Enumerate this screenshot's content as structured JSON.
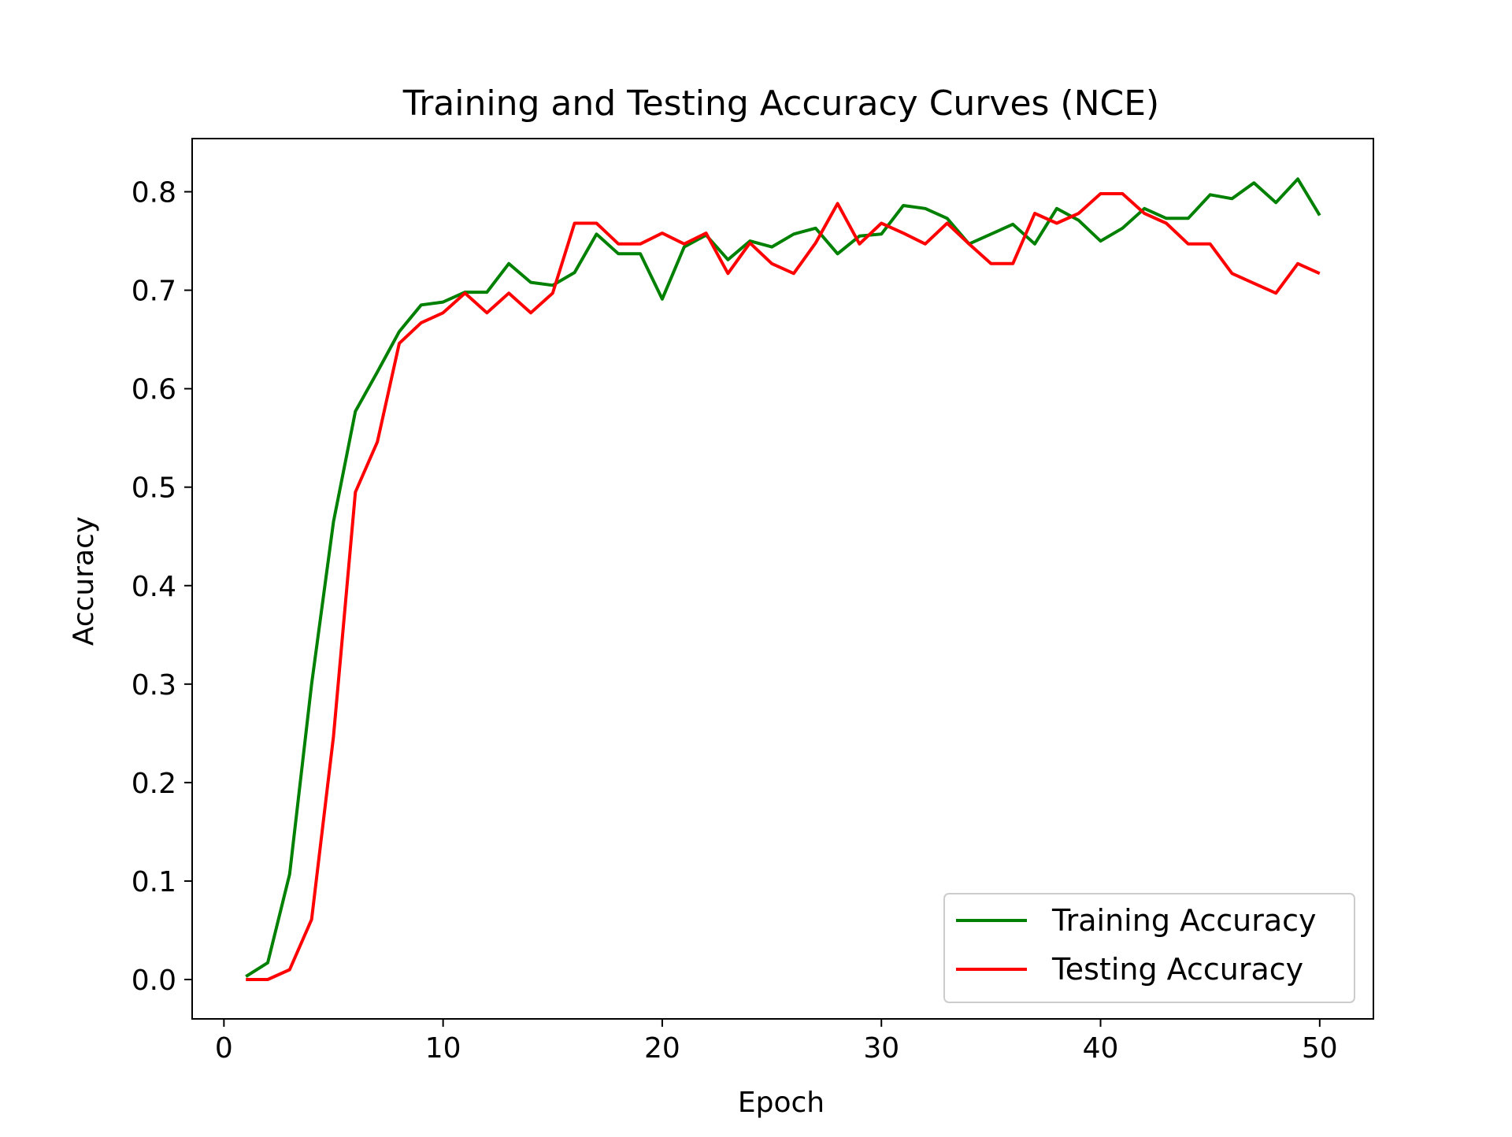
{
  "chart_data": {
    "type": "line",
    "title": "Training and Testing Accuracy Curves (NCE)",
    "xlabel": "Epoch",
    "ylabel": "Accuracy",
    "xlim": [
      -1.45,
      52.45
    ],
    "ylim": [
      -0.04,
      0.854
    ],
    "xticks": [
      0,
      10,
      20,
      30,
      40,
      50
    ],
    "yticks": [
      0.0,
      0.1,
      0.2,
      0.3,
      0.4,
      0.5,
      0.6,
      0.7,
      0.8
    ],
    "grid": false,
    "legend_position": "lower-right",
    "x": [
      1,
      2,
      3,
      4,
      5,
      6,
      7,
      8,
      9,
      10,
      11,
      12,
      13,
      14,
      15,
      16,
      17,
      18,
      19,
      20,
      21,
      22,
      23,
      24,
      25,
      26,
      27,
      28,
      29,
      30,
      31,
      32,
      33,
      34,
      35,
      36,
      37,
      38,
      39,
      40,
      41,
      42,
      43,
      44,
      45,
      46,
      47,
      48,
      49,
      50
    ],
    "series": [
      {
        "name": "Training Accuracy",
        "color": "#008000",
        "values": [
          0.003,
          0.017,
          0.107,
          0.3,
          0.465,
          0.577,
          0.617,
          0.658,
          0.685,
          0.688,
          0.698,
          0.698,
          0.727,
          0.708,
          0.705,
          0.718,
          0.757,
          0.737,
          0.737,
          0.691,
          0.744,
          0.756,
          0.731,
          0.75,
          0.744,
          0.757,
          0.763,
          0.737,
          0.755,
          0.757,
          0.786,
          0.783,
          0.773,
          0.747,
          0.757,
          0.767,
          0.747,
          0.783,
          0.771,
          0.75,
          0.763,
          0.783,
          0.773,
          0.773,
          0.797,
          0.793,
          0.809,
          0.789,
          0.813,
          0.776
        ]
      },
      {
        "name": "Testing Accuracy",
        "color": "#ff0000",
        "values": [
          0.0,
          0.0,
          0.01,
          0.061,
          0.247,
          0.495,
          0.546,
          0.646,
          0.667,
          0.677,
          0.697,
          0.677,
          0.697,
          0.677,
          0.697,
          0.768,
          0.768,
          0.747,
          0.747,
          0.758,
          0.747,
          0.758,
          0.717,
          0.748,
          0.727,
          0.717,
          0.748,
          0.788,
          0.747,
          0.768,
          0.758,
          0.747,
          0.768,
          0.747,
          0.727,
          0.727,
          0.778,
          0.768,
          0.778,
          0.798,
          0.798,
          0.778,
          0.768,
          0.747,
          0.747,
          0.717,
          0.707,
          0.697,
          0.727,
          0.717
        ]
      }
    ]
  }
}
